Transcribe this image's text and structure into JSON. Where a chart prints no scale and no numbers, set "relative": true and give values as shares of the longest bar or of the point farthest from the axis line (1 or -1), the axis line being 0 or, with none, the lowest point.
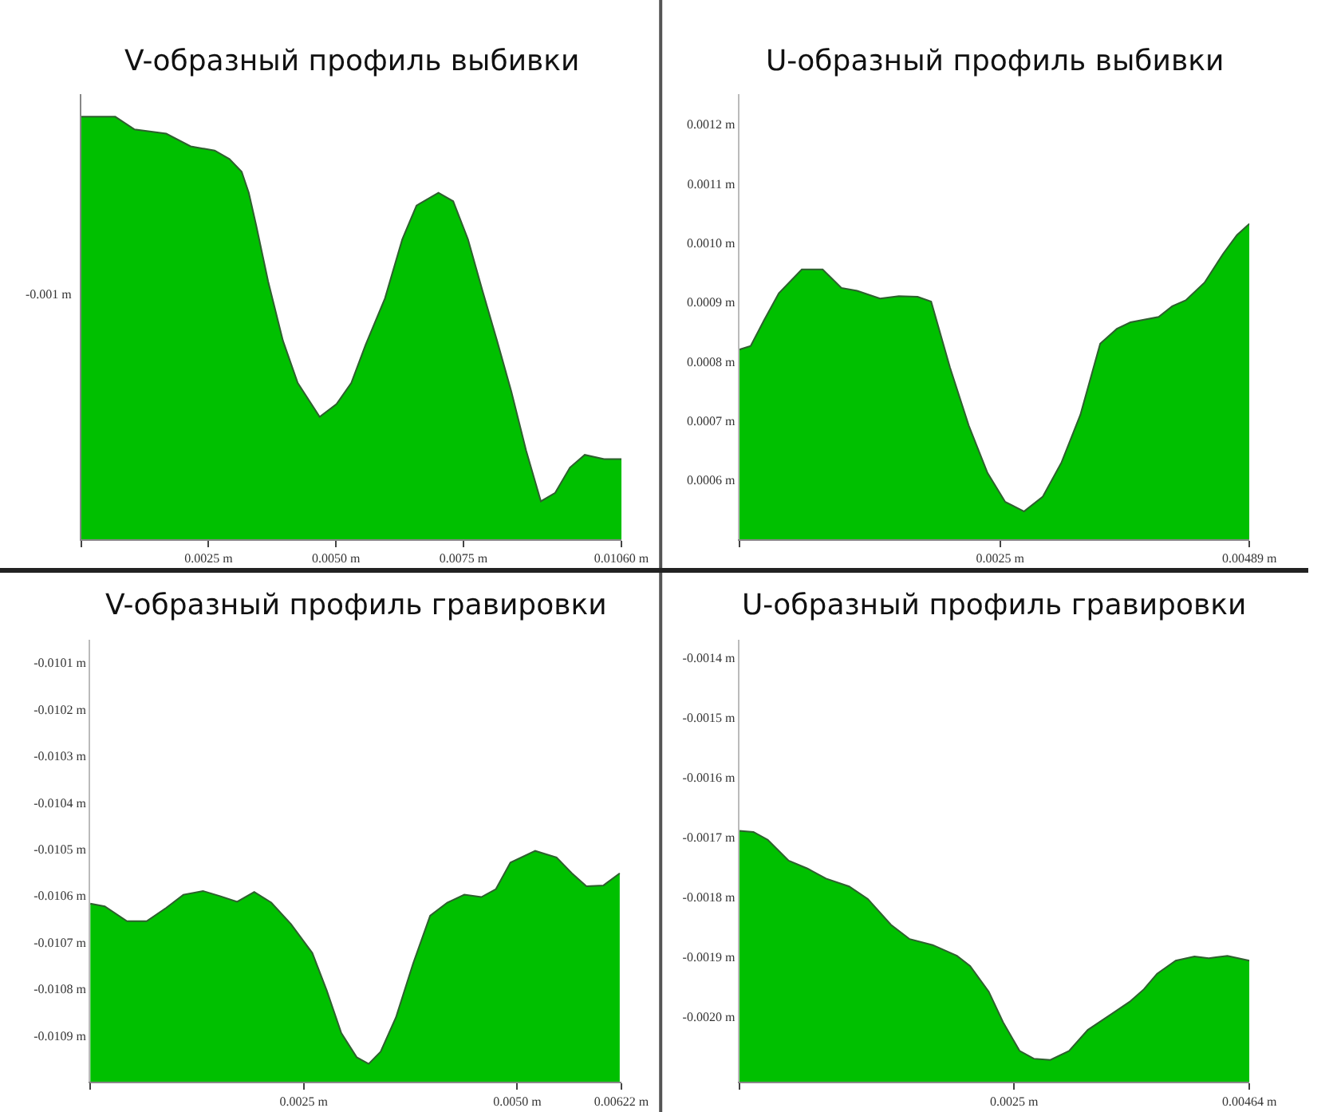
{
  "chart_data": [
    {
      "type": "area",
      "title": "V-образный профиль выбивки",
      "relative": true,
      "annotations": [
        "-0.001 m"
      ],
      "x": [
        0,
        0.00033,
        0.00067,
        0.00105,
        0.00167,
        0.00215,
        0.00262,
        0.00291,
        0.00315,
        0.00329,
        0.00344,
        0.00367,
        0.00396,
        0.00425,
        0.00468,
        0.00501,
        0.0053,
        0.00558,
        0.00596,
        0.0063,
        0.00658,
        0.00701,
        0.0073,
        0.00759,
        0.00787,
        0.00816,
        0.00844,
        0.00873,
        0.00902,
        0.0093,
        0.00959,
        0.00988,
        0.01026,
        0.0106
      ],
      "series": [
        {
          "color": "#00c000",
          "values": [
            1.0,
            1.0,
            1.0,
            0.97,
            0.96,
            0.93,
            0.92,
            0.9,
            0.87,
            0.82,
            0.74,
            0.61,
            0.47,
            0.37,
            0.29,
            0.32,
            0.37,
            0.46,
            0.57,
            0.71,
            0.79,
            0.82,
            0.8,
            0.71,
            0.59,
            0.47,
            0.35,
            0.21,
            0.09,
            0.11,
            0.17,
            0.2,
            0.19,
            0.19
          ]
        }
      ],
      "xlim": [
        0,
        0.0106
      ],
      "xticks": [
        {
          "value": 0,
          "label": null
        },
        {
          "value": 0.0025,
          "label": "0.0025 m"
        },
        {
          "value": 0.005,
          "label": "0.0050 m"
        },
        {
          "value": 0.0075,
          "label": "0.0075 m"
        },
        {
          "value": 0.0106,
          "label": "0.01060 m"
        }
      ]
    },
    {
      "type": "area",
      "title": "U-образный профиль выбивки",
      "x": [
        0,
        0.00011,
        0.00024,
        0.00038,
        0.0006,
        0.0008,
        0.00098,
        0.00113,
        0.00135,
        0.00153,
        0.00171,
        0.00184,
        0.00202,
        0.0022,
        0.00238,
        0.00255,
        0.00273,
        0.00291,
        0.00309,
        0.00327,
        0.00346,
        0.00362,
        0.00375,
        0.00402,
        0.00415,
        0.00428,
        0.00446,
        0.00464,
        0.00477,
        0.00489
      ],
      "series": [
        {
          "color": "#00c000",
          "values": [
            0.00082,
            0.000826,
            0.00087,
            0.000915,
            0.000955,
            0.000955,
            0.000924,
            0.000919,
            0.000906,
            0.00091,
            0.000909,
            0.000901,
            0.00079,
            0.000692,
            0.000612,
            0.000563,
            0.000547,
            0.000572,
            0.00063,
            0.00071,
            0.00083,
            0.000855,
            0.000866,
            0.000875,
            0.000893,
            0.000903,
            0.000933,
            0.000982,
            0.001013,
            0.001032
          ]
        }
      ],
      "xlim": [
        0,
        0.00489
      ],
      "xticks": [
        {
          "value": 0,
          "label": null
        },
        {
          "value": 0.0025,
          "label": "0.0025 m"
        },
        {
          "value": 0.00489,
          "label": "0.00489 m"
        }
      ],
      "ylim": [
        0.0005,
        0.00125
      ],
      "yticks": [
        {
          "value": 0.0006,
          "label": "0.0006 m"
        },
        {
          "value": 0.0007,
          "label": "0.0007 m"
        },
        {
          "value": 0.0008,
          "label": "0.0008 m"
        },
        {
          "value": 0.0009,
          "label": "0.0009 m"
        },
        {
          "value": 0.001,
          "label": "0.0010 m"
        },
        {
          "value": 0.0011,
          "label": "0.0011 m"
        },
        {
          "value": 0.0012,
          "label": "0.0012 m"
        }
      ]
    },
    {
      "type": "area",
      "title": "V-образный профиль гравировки",
      "x": [
        0,
        0.00017,
        0.00043,
        0.00066,
        0.00089,
        0.00109,
        0.00132,
        0.00152,
        0.00172,
        0.00192,
        0.00212,
        0.00235,
        0.0026,
        0.00277,
        0.00294,
        0.00312,
        0.00326,
        0.0034,
        0.00358,
        0.00378,
        0.00398,
        0.00418,
        0.00438,
        0.00458,
        0.00475,
        0.00492,
        0.00521,
        0.00546,
        0.00564,
        0.00581,
        0.00601,
        0.0062
      ],
      "series": [
        {
          "color": "#00c000",
          "values": [
            -0.010617,
            -0.010623,
            -0.010655,
            -0.010655,
            -0.010626,
            -0.010598,
            -0.01059,
            -0.010601,
            -0.010613,
            -0.010592,
            -0.010615,
            -0.010661,
            -0.010723,
            -0.010804,
            -0.010895,
            -0.010947,
            -0.010961,
            -0.010935,
            -0.010861,
            -0.010746,
            -0.010643,
            -0.010615,
            -0.010598,
            -0.010603,
            -0.010586,
            -0.010529,
            -0.010504,
            -0.010518,
            -0.010552,
            -0.01058,
            -0.010578,
            -0.010552
          ]
        }
      ],
      "xlim": [
        0,
        0.00622
      ],
      "xticks": [
        {
          "value": 0,
          "label": null
        },
        {
          "value": 0.0025,
          "label": "0.0025 m"
        },
        {
          "value": 0.005,
          "label": "0.0050 m"
        },
        {
          "value": 0.00622,
          "label": "0.00622 m"
        }
      ],
      "ylim": [
        -0.011,
        -0.01005
      ],
      "yticks": [
        {
          "value": -0.0109,
          "label": "-0.0109 m"
        },
        {
          "value": -0.0108,
          "label": "-0.0108 m"
        },
        {
          "value": -0.0107,
          "label": "-0.0107 m"
        },
        {
          "value": -0.0106,
          "label": "-0.0106 m"
        },
        {
          "value": -0.0105,
          "label": "-0.0105 m"
        },
        {
          "value": -0.0104,
          "label": "-0.0104 m"
        },
        {
          "value": -0.0103,
          "label": "-0.0103 m"
        },
        {
          "value": -0.0102,
          "label": "-0.0102 m"
        },
        {
          "value": -0.0101,
          "label": "-0.0101 m"
        }
      ]
    },
    {
      "type": "area",
      "title": "U-образный профиль гравировки",
      "x": [
        0,
        0.00013,
        0.00026,
        0.00045,
        0.00062,
        0.00079,
        0.001,
        0.00117,
        0.00138,
        0.00155,
        0.00176,
        0.00198,
        0.0021,
        0.00227,
        0.0024,
        0.00255,
        0.00268,
        0.00283,
        0.003,
        0.00317,
        0.00334,
        0.00355,
        0.00368,
        0.0038,
        0.00397,
        0.00414,
        0.00427,
        0.00444,
        0.00464
      ],
      "series": [
        {
          "color": "#00c000",
          "values": [
            -0.00169,
            -0.001692,
            -0.001705,
            -0.00174,
            -0.001753,
            -0.00177,
            -0.001783,
            -0.001804,
            -0.001847,
            -0.001871,
            -0.001881,
            -0.001899,
            -0.001916,
            -0.001959,
            -0.00201,
            -0.002058,
            -0.002071,
            -0.002073,
            -0.002058,
            -0.002023,
            -0.002002,
            -0.001976,
            -0.001955,
            -0.001929,
            -0.001907,
            -0.0019,
            -0.001903,
            -0.001899,
            -0.001907
          ]
        }
      ],
      "xlim": [
        0,
        0.00464
      ],
      "xticks": [
        {
          "value": 0,
          "label": null
        },
        {
          "value": 0.0025,
          "label": "0.0025 m"
        },
        {
          "value": 0.00464,
          "label": "0.00464 m"
        }
      ],
      "ylim": [
        -0.00211,
        -0.00137
      ],
      "yticks": [
        {
          "value": -0.002,
          "label": "-0.0020 m"
        },
        {
          "value": -0.0019,
          "label": "-0.0019 m"
        },
        {
          "value": -0.0018,
          "label": "-0.0018 m"
        },
        {
          "value": -0.0017,
          "label": "-0.0017 m"
        },
        {
          "value": -0.0016,
          "label": "-0.0016 m"
        },
        {
          "value": -0.0015,
          "label": "-0.0015 m"
        },
        {
          "value": -0.0014,
          "label": "-0.0014 m"
        }
      ]
    }
  ]
}
